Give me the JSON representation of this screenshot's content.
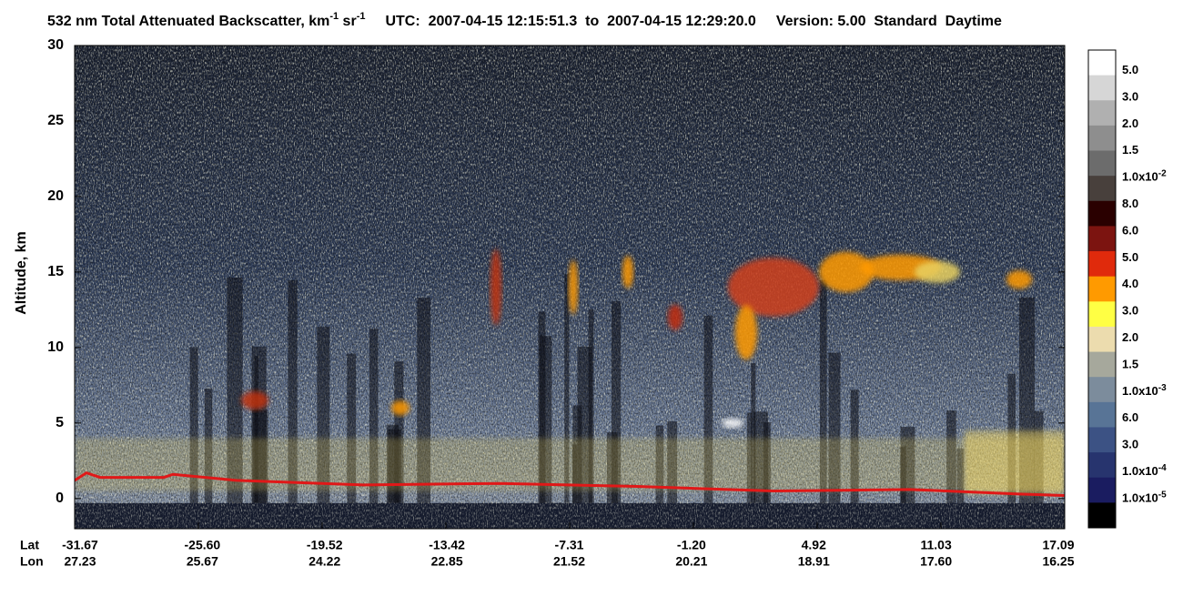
{
  "chart_data": {
    "type": "curtain",
    "title_parts": [
      "532 nm Total Attenuated Backscatter, km",
      "-1",
      " sr",
      "-1"
    ],
    "time_range": "UTC:  2007-04-15 12:15:51.3  to  2007-04-15 12:29:20.0",
    "version": "Version: 5.00  Standard  Daytime",
    "ylabel": "Altitude, km",
    "ylim": [
      -2,
      30
    ],
    "yticks": [
      0,
      5,
      10,
      15,
      20,
      25,
      30
    ],
    "lat_title": "Lat",
    "lon_title": "Lon",
    "lat_labels": [
      "-31.67",
      "-25.60",
      "-19.52",
      "-13.42",
      "-7.31",
      "-1.20",
      "4.92",
      "11.03",
      "17.09"
    ],
    "lon_labels": [
      "27.23",
      "25.67",
      "24.22",
      "22.85",
      "21.52",
      "20.21",
      "18.91",
      "17.60",
      "16.25"
    ],
    "colorbar": {
      "colors": [
        "#ffffff",
        "#d6d6d6",
        "#b0b0b0",
        "#8e8e8e",
        "#6c6c6c",
        "#48403c",
        "#2a0000",
        "#7c1410",
        "#e02a0c",
        "#ff9a00",
        "#ffff44",
        "#ecdcae",
        "#a6a89c",
        "#7c8c9c",
        "#587496",
        "#3c5284",
        "#27346e",
        "#1a1c60",
        "#000000"
      ],
      "labels": [
        {
          "base": "5.0"
        },
        {
          "base": "3.0"
        },
        {
          "base": "2.0"
        },
        {
          "base": "1.5"
        },
        {
          "base": "1.0x10",
          "sup": "-2"
        },
        {
          "base": "8.0"
        },
        {
          "base": "6.0"
        },
        {
          "base": "5.0"
        },
        {
          "base": "4.0"
        },
        {
          "base": "3.0"
        },
        {
          "base": "2.0"
        },
        {
          "base": "1.5"
        },
        {
          "base": "1.0x10",
          "sup": "-3"
        },
        {
          "base": "6.0"
        },
        {
          "base": "3.0"
        },
        {
          "base": "1.0x10",
          "sup": "-4"
        },
        {
          "base": "1.0x10",
          "sup": "-5"
        }
      ]
    }
  }
}
